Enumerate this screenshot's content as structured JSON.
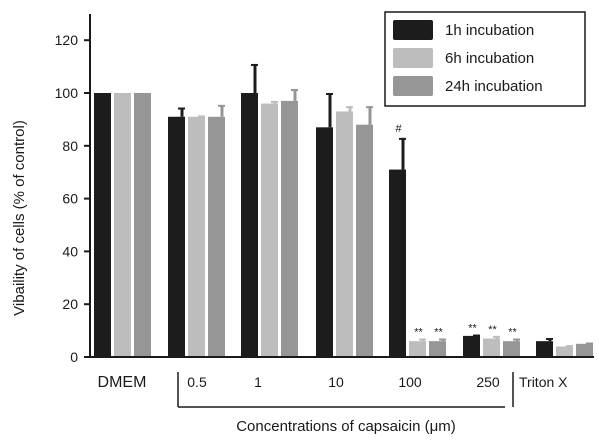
{
  "chart_data": {
    "type": "bar",
    "title": "",
    "ylabel": "Vibaility of cells (% of control)",
    "xlabel": "Concentrations of  capsaicin (μm)",
    "ylim": [
      0,
      130
    ],
    "yticks": [
      0,
      20,
      40,
      60,
      80,
      100,
      120
    ],
    "categories": [
      "DMEM",
      "0.5",
      "1",
      "10",
      "100",
      "250",
      "Triton X"
    ],
    "series": [
      {
        "name": "1h incubation",
        "color": "#1c1c1c",
        "values": [
          100,
          91,
          100,
          87,
          71,
          8,
          6
        ],
        "errors": [
          0,
          3.5,
          11,
          13,
          12,
          0.5,
          1.2
        ],
        "annotations": [
          "",
          "",
          "",
          "",
          "#",
          "**",
          ""
        ]
      },
      {
        "name": "6h incubation",
        "color": "#bdbdbd",
        "values": [
          100,
          91,
          96,
          93,
          6,
          7,
          4
        ],
        "errors": [
          0,
          0.5,
          1,
          2,
          1,
          1,
          0.5
        ],
        "annotations": [
          "",
          "",
          "",
          "",
          "**",
          "**",
          ""
        ]
      },
      {
        "name": "24h incubation",
        "color": "#969696",
        "values": [
          100,
          91,
          97,
          88,
          6,
          6,
          5
        ],
        "errors": [
          0,
          4.5,
          4.5,
          7,
          1,
          1,
          0.5
        ],
        "annotations": [
          "",
          "",
          "",
          "",
          "**",
          "**",
          ""
        ]
      }
    ],
    "legend_position": "top-right",
    "grid": false
  }
}
